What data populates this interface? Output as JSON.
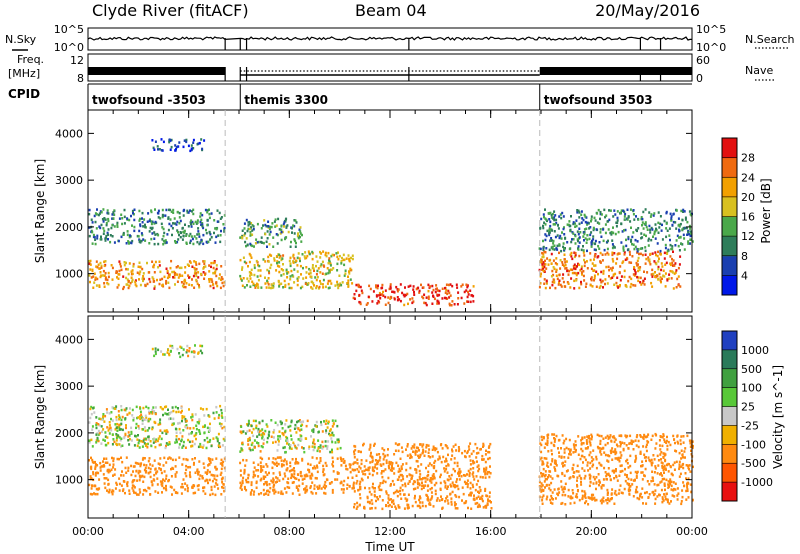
{
  "header": {
    "station": "Clyde River (fitACF)",
    "beam": "Beam 04",
    "date": "20/May/2016"
  },
  "status_panels": {
    "nsky_label": "N.Sky",
    "nsky_ticks": [
      "10^5",
      "10^0"
    ],
    "nsearch_label": "N.Search",
    "nsearch_ticks": [
      "10^5",
      "10^0"
    ],
    "freq_label": "Freq.",
    "freq_unit": "[MHz]",
    "freq_ticks": [
      "12",
      "8"
    ],
    "nave_label": "Nave",
    "nave_ticks": [
      "60",
      "0"
    ],
    "cpid_label": "CPID",
    "cpid_segments": [
      {
        "name": "twofsound -3503",
        "start_h": 0.0,
        "end_h": 5.45
      },
      {
        "name": "themis 3300",
        "start_h": 6.05,
        "end_h": 17.95
      },
      {
        "name": "twofsound 3503",
        "start_h": 17.95,
        "end_h": 24.0
      }
    ]
  },
  "chart_data": [
    {
      "type": "heatmap",
      "title": "",
      "xlabel": "Time UT",
      "ylabel": "Slant Range [km]",
      "colorbar_label": "Power [dB]",
      "xlim": [
        0,
        24
      ],
      "ylim": [
        180,
        4500
      ],
      "x_ticks": [
        "00:00",
        "04:00",
        "08:00",
        "12:00",
        "16:00",
        "20:00",
        "00:00"
      ],
      "y_ticks": [
        1000,
        2000,
        3000,
        4000
      ],
      "colorbar_ticks": [
        4,
        8,
        12,
        16,
        20,
        24,
        28
      ],
      "colorbar_range": [
        0,
        30
      ],
      "colorbar_colors": [
        "#0018e8",
        "#1a3fb0",
        "#2e7d5a",
        "#4aa84a",
        "#d8c020",
        "#f2a000",
        "#ef6a10",
        "#e21010"
      ],
      "data_gap_hours": [
        5.45,
        6.05
      ],
      "features": [
        {
          "desc": "echo band",
          "t0": 0.0,
          "t1": 5.4,
          "r0": 700,
          "r1": 1300,
          "power": 22
        },
        {
          "desc": "echo band",
          "t0": 0.0,
          "t1": 5.4,
          "r0": 1650,
          "r1": 2400,
          "power": 10
        },
        {
          "desc": "echo patch",
          "t0": 2.5,
          "t1": 4.6,
          "r0": 3650,
          "r1": 3900,
          "power": 5
        },
        {
          "desc": "echo band",
          "t0": 6.0,
          "t1": 10.5,
          "r0": 700,
          "r1": 1500,
          "power": 18
        },
        {
          "desc": "echo band",
          "t0": 6.0,
          "t1": 8.5,
          "r0": 1600,
          "r1": 2200,
          "power": 11
        },
        {
          "desc": "echo band",
          "t0": 10.5,
          "t1": 15.3,
          "r0": 350,
          "r1": 800,
          "power": 27
        },
        {
          "desc": "echo band",
          "t0": 17.9,
          "t1": 23.5,
          "r0": 700,
          "r1": 1500,
          "power": 23
        },
        {
          "desc": "scatter",
          "t0": 17.9,
          "t1": 24.0,
          "r0": 1500,
          "r1": 2400,
          "power": 10
        }
      ]
    },
    {
      "type": "heatmap",
      "title": "",
      "xlabel": "Time UT",
      "ylabel": "Slant Range [km]",
      "colorbar_label": "Velocity [m s^-1]",
      "xlim": [
        0,
        24
      ],
      "ylim": [
        180,
        4500
      ],
      "x_ticks": [
        "00:00",
        "04:00",
        "08:00",
        "12:00",
        "16:00",
        "20:00",
        "00:00"
      ],
      "y_ticks": [
        1000,
        2000,
        3000,
        4000
      ],
      "colorbar_ticks": [
        "1000",
        "500",
        "100",
        "25",
        "-25",
        "-100",
        "-500",
        "-1000"
      ],
      "colorbar_colors": [
        "#2040c0",
        "#2a7a5a",
        "#40a040",
        "#58c838",
        "#c8c8c8",
        "#f0b000",
        "#ff8a10",
        "#ff5500",
        "#e81010"
      ],
      "data_gap_hours": [
        5.45,
        6.05
      ],
      "features": [
        {
          "desc": "low-velocity echoes",
          "t0": 0.0,
          "t1": 5.4,
          "r0": 1700,
          "r1": 2600,
          "velocity": 0
        },
        {
          "desc": "negative velocity band",
          "t0": 0.0,
          "t1": 5.4,
          "r0": 700,
          "r1": 1500,
          "velocity": -300
        },
        {
          "desc": "low-velocity patch",
          "t0": 2.5,
          "t1": 4.6,
          "r0": 3650,
          "r1": 3900,
          "velocity": 0
        },
        {
          "desc": "low-velocity echoes",
          "t0": 6.0,
          "t1": 10.0,
          "r0": 1600,
          "r1": 2300,
          "velocity": 0
        },
        {
          "desc": "negative velocity band",
          "t0": 6.0,
          "t1": 10.5,
          "r0": 700,
          "r1": 1500,
          "velocity": -300
        },
        {
          "desc": "negative velocity band",
          "t0": 10.5,
          "t1": 16.0,
          "r0": 400,
          "r1": 1800,
          "velocity": -250
        },
        {
          "desc": "negative velocity band",
          "t0": 17.9,
          "t1": 24.0,
          "r0": 500,
          "r1": 2000,
          "velocity": -350
        }
      ]
    }
  ]
}
